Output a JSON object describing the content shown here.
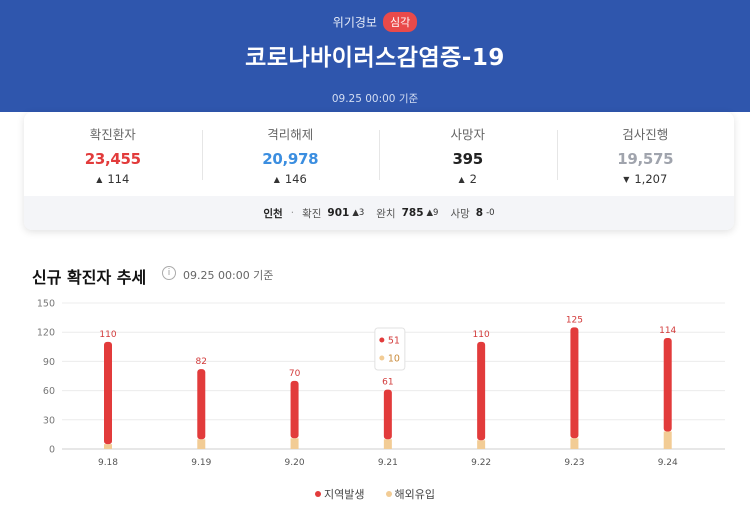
{
  "header": {
    "alert_label": "위기경보",
    "alert_badge": "심각",
    "title": "코로나바이러스감염증-19",
    "date": "09.25 00:00 기준"
  },
  "stats": [
    {
      "label": "확진환자",
      "value": "23,455",
      "delta": "114",
      "direction": "up",
      "color": "#e23b3b"
    },
    {
      "label": "격리해제",
      "value": "20,978",
      "delta": "146",
      "direction": "up",
      "color": "#3b8ee0"
    },
    {
      "label": "사망자",
      "value": "395",
      "delta": "2",
      "direction": "up",
      "color": "#222222"
    },
    {
      "label": "검사진행",
      "value": "19,575",
      "delta": "1,207",
      "direction": "down",
      "color": "#a0a4ad"
    }
  ],
  "region": {
    "name": "인천",
    "confirmed_label": "확진",
    "confirmed_value": "901",
    "confirmed_delta": "▲3",
    "released_label": "완치",
    "released_value": "785",
    "released_delta": "▲9",
    "death_label": "사망",
    "death_value": "8",
    "death_delta": "-0"
  },
  "trend": {
    "title": "신규 확진자 추세",
    "date": "09.25 00:00 기준"
  },
  "colors": {
    "local": "#e23b3b",
    "overseas": "#f2cc95",
    "header_bg": "#2f56ad"
  },
  "chart_data": {
    "type": "bar",
    "stacked": true,
    "categories": [
      "9.18",
      "9.19",
      "9.20",
      "9.21",
      "9.22",
      "9.23",
      "9.24"
    ],
    "series": [
      {
        "name": "지역발생",
        "values": [
          105,
          72,
          59,
          51,
          101,
          114,
          96
        ]
      },
      {
        "name": "해외유입",
        "values": [
          5,
          10,
          11,
          10,
          9,
          11,
          18
        ]
      }
    ],
    "totals": [
      110,
      82,
      70,
      61,
      110,
      125,
      114
    ],
    "yticks": [
      0,
      30,
      60,
      90,
      120,
      150
    ],
    "ylim": [
      0,
      150
    ],
    "tooltip": {
      "category": "9.21",
      "local": "51",
      "overseas": "10"
    },
    "legend": [
      "지역발생",
      "해외유입"
    ],
    "legend_position": "bottom",
    "grid": true
  }
}
